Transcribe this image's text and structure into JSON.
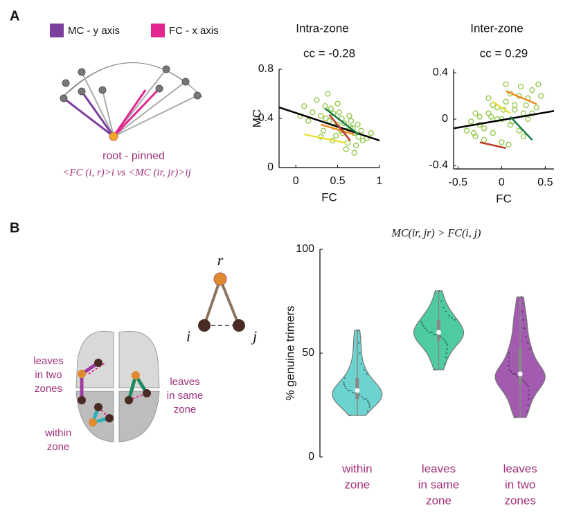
{
  "panel_a": {
    "label": "A",
    "legend": [
      {
        "label": "MC - y axis",
        "color": "#7b3f9e"
      },
      {
        "label": "FC - x axis",
        "color": "#e5258f"
      }
    ],
    "root_label": "root - pinned",
    "formula": "<FC (i, r)>i  vs <MC (ir, jr)>ij"
  },
  "panel_b": {
    "label": "B",
    "triangle": {
      "r": "r",
      "i": "i",
      "j": "j"
    },
    "brain_labels": {
      "two_zones": [
        "leaves",
        "in two",
        "zones"
      ],
      "within": [
        "within",
        "zone"
      ],
      "same_zone": [
        "leaves",
        "in same",
        "zone"
      ]
    }
  },
  "chart_data": [
    {
      "type": "scatter",
      "title": "Intra-zone",
      "annotation": "cc = -0.28",
      "xlabel": "FC",
      "ylabel": "MC",
      "xlim": [
        -0.2,
        1
      ],
      "ylim": [
        0,
        0.8
      ],
      "xticks": [
        0,
        0.5,
        1
      ],
      "yticks": [
        0,
        0.4,
        0.8
      ],
      "color": "#8dc63f",
      "x": [
        0.2,
        0.3,
        0.35,
        0.4,
        0.45,
        0.5,
        0.55,
        0.6,
        0.65,
        0.7,
        0.75,
        0.8,
        0.25,
        0.33,
        0.42,
        0.48,
        0.52,
        0.58,
        0.62,
        0.68,
        0.72,
        0.78,
        0.85,
        0.15,
        0.1,
        0.38,
        0.46,
        0.56,
        0.64,
        0.74,
        0.3,
        0.5,
        0.6,
        0.44,
        0.66,
        0.36,
        0.54,
        0.7,
        0.9,
        0.05
      ],
      "y": [
        0.45,
        0.42,
        0.5,
        0.38,
        0.44,
        0.35,
        0.4,
        0.3,
        0.33,
        0.28,
        0.25,
        0.22,
        0.55,
        0.3,
        0.48,
        0.26,
        0.45,
        0.36,
        0.2,
        0.32,
        0.18,
        0.3,
        0.24,
        0.38,
        0.5,
        0.6,
        0.33,
        0.28,
        0.42,
        0.35,
        0.25,
        0.52,
        0.15,
        0.22,
        0.38,
        0.4,
        0.3,
        0.12,
        0.28,
        0.42
      ],
      "lines": [
        {
          "color": "#000000",
          "x": [
            -0.2,
            1
          ],
          "y": [
            0.49,
            0.22
          ]
        },
        {
          "color": "#1a7a4c",
          "x": [
            0.35,
            0.75
          ],
          "y": [
            0.48,
            0.27
          ]
        },
        {
          "color": "#f08a24",
          "x": [
            0.3,
            0.7
          ],
          "y": [
            0.35,
            0.27
          ]
        },
        {
          "color": "#c0392b",
          "x": [
            0.4,
            0.65
          ],
          "y": [
            0.43,
            0.22
          ]
        },
        {
          "color": "#e8e03a",
          "x": [
            0.1,
            0.6
          ],
          "y": [
            0.27,
            0.2
          ]
        }
      ]
    },
    {
      "type": "scatter",
      "title": "Inter-zone",
      "annotation": "cc = 0.29",
      "xlabel": "FC",
      "xlim": [
        -0.55,
        0.6
      ],
      "ylim": [
        -0.43,
        0.43
      ],
      "xticks": [
        -0.5,
        0,
        0.5
      ],
      "yticks": [
        -0.4,
        0,
        0.4
      ],
      "color": "#8dc63f",
      "x": [
        -0.4,
        -0.35,
        -0.3,
        -0.25,
        -0.2,
        -0.15,
        -0.1,
        -0.05,
        0,
        0.05,
        0.1,
        0.15,
        0.2,
        0.25,
        0.3,
        0.35,
        0.4,
        0.45,
        -0.3,
        -0.2,
        -0.1,
        0,
        0.1,
        0.2,
        0.3,
        -0.25,
        -0.15,
        0.05,
        0.15,
        0.25,
        0.35,
        -0.05,
        0.12,
        0.22,
        -0.32,
        0.42,
        0.02,
        -0.12,
        0.28,
        0.08
      ],
      "y": [
        -0.1,
        -0.02,
        -0.15,
        0.02,
        -0.08,
        0.05,
        -0.12,
        0.1,
        0,
        0.15,
        -0.05,
        0.12,
        0.2,
        0.05,
        0.18,
        0.25,
        0.1,
        0.2,
        0.05,
        -0.18,
        0.12,
        -0.2,
        0.22,
        -0.1,
        0,
        -0.05,
        0.18,
        0.3,
        0.08,
        -0.15,
        0.05,
        0,
        -0.02,
        0.28,
        -0.12,
        0.3,
        0.08,
        0.02,
        0.12,
        -0.22
      ],
      "lines": [
        {
          "color": "#000000",
          "x": [
            -0.55,
            0.6
          ],
          "y": [
            -0.08,
            0.07
          ]
        },
        {
          "color": "#f08a24",
          "x": [
            0.05,
            0.4
          ],
          "y": [
            0.24,
            0.13
          ]
        },
        {
          "color": "#1a7a4c",
          "x": [
            0.1,
            0.35
          ],
          "y": [
            0.02,
            -0.18
          ]
        },
        {
          "color": "#e8e03a",
          "x": [
            -0.1,
            0.1
          ],
          "y": [
            0.15,
            0.05
          ]
        },
        {
          "color": "#c0392b",
          "x": [
            -0.25,
            0.05
          ],
          "y": [
            -0.2,
            -0.25
          ]
        }
      ]
    },
    {
      "type": "violin",
      "title": "MC(ir, jr) > FC(i, j)",
      "ylabel": "% genuine trimers",
      "ylim": [
        0,
        100
      ],
      "yticks": [
        0,
        50,
        100
      ],
      "categories": [
        [
          "within",
          "zone"
        ],
        [
          "leaves",
          "in same",
          "zone"
        ],
        [
          "leaves",
          "in two",
          "zones"
        ]
      ],
      "colors": [
        "#6dd3ce",
        "#4ecb9f",
        "#a35bb0"
      ],
      "values": [
        [
          20,
          22,
          24,
          25,
          26,
          27,
          28,
          28,
          29,
          30,
          30,
          31,
          31,
          32,
          32,
          33,
          34,
          35,
          36,
          38,
          40,
          42,
          45,
          50,
          55,
          61
        ],
        [
          42,
          45,
          48,
          50,
          52,
          54,
          55,
          56,
          57,
          58,
          58,
          59,
          59,
          60,
          60,
          61,
          62,
          63,
          64,
          65,
          66,
          67,
          68,
          70,
          72,
          75,
          80
        ],
        [
          19,
          22,
          25,
          28,
          30,
          32,
          34,
          35,
          36,
          37,
          38,
          39,
          40,
          40,
          41,
          42,
          44,
          46,
          48,
          50,
          52,
          55,
          58,
          62,
          66,
          70,
          77
        ]
      ]
    }
  ]
}
